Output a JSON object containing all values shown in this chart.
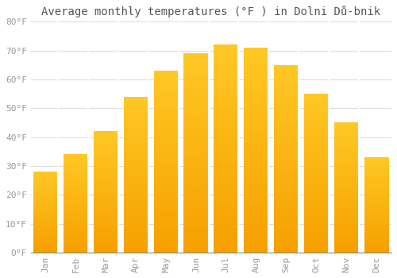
{
  "title": "Average monthly temperatures (°F ) in Dolni Dů-bnik",
  "months": [
    "Jan",
    "Feb",
    "Mar",
    "Apr",
    "May",
    "Jun",
    "Jul",
    "Aug",
    "Sep",
    "Oct",
    "Nov",
    "Dec"
  ],
  "values": [
    28,
    34,
    42,
    54,
    63,
    69,
    72,
    71,
    65,
    55,
    45,
    33
  ],
  "bar_color_top": "#FFC825",
  "bar_color_bottom": "#F5A000",
  "bar_edge_color": "#CCCCCC",
  "background_color": "#FFFFFF",
  "grid_color": "#DDDDDD",
  "text_color": "#999999",
  "ylim": [
    0,
    80
  ],
  "ytick_step": 10,
  "title_fontsize": 10,
  "tick_fontsize": 8
}
